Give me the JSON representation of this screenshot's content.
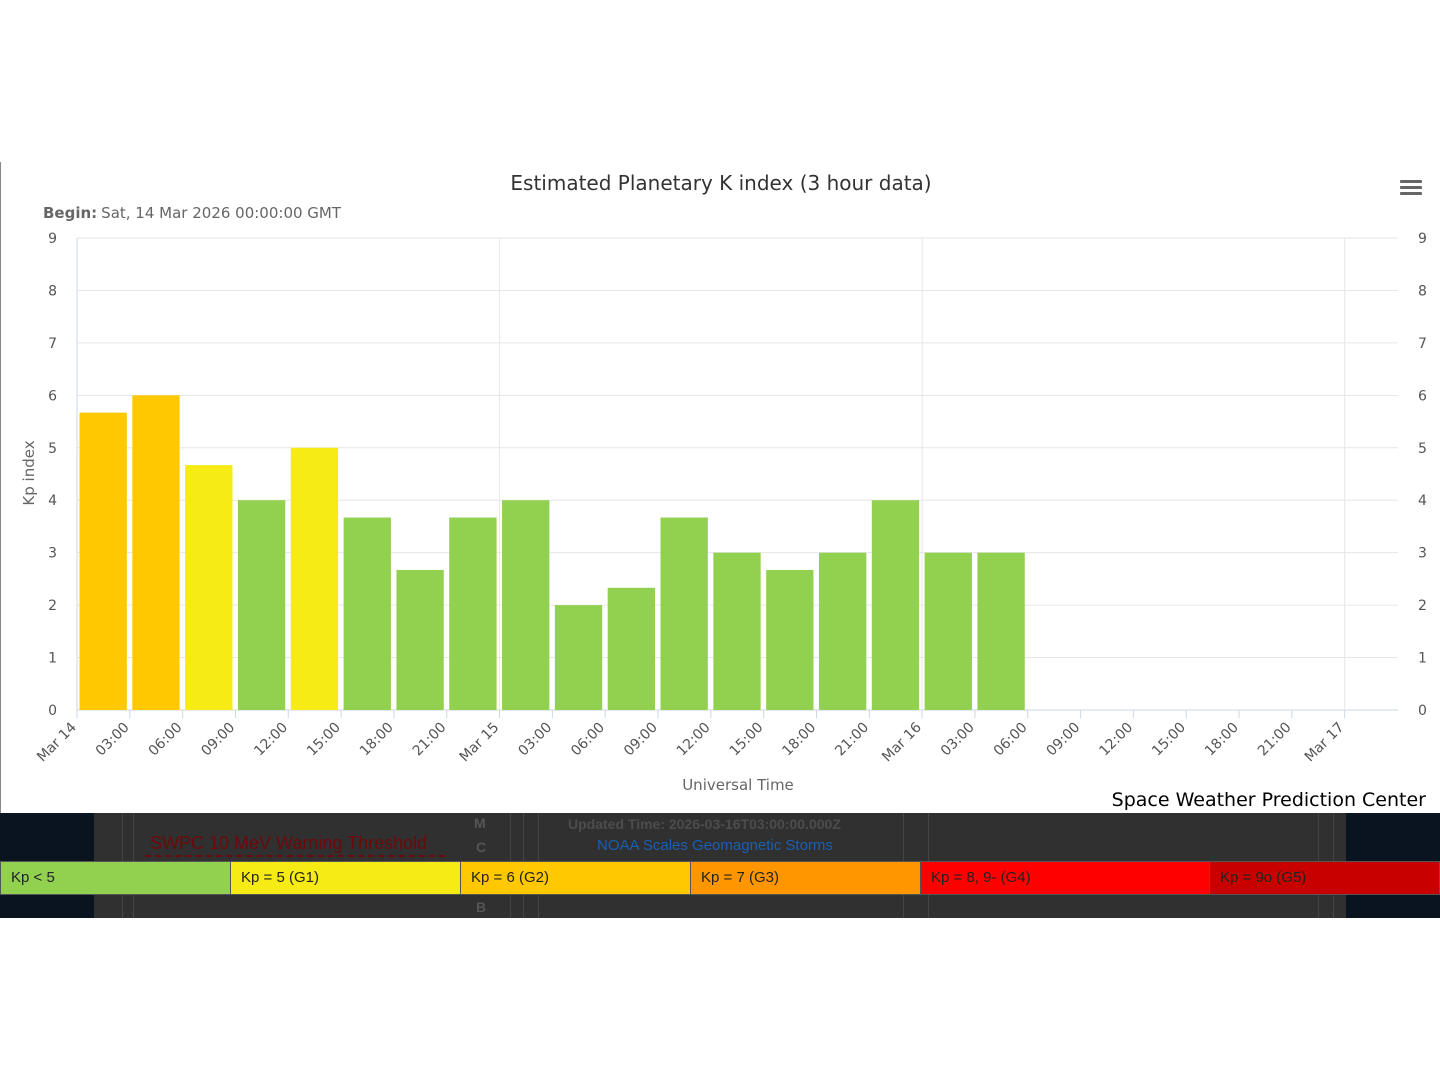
{
  "chart_data": {
    "type": "bar",
    "title": "Estimated Planetary K index (3 hour data)",
    "subtitle_label": "Begin:",
    "subtitle_value": "Sat, 14 Mar 2026 00:00:00 GMT",
    "xlabel": "Universal Time",
    "ylabel": "Kp index",
    "ylim": [
      0,
      9
    ],
    "yticks": [
      "0",
      "1",
      "2",
      "3",
      "4",
      "5",
      "6",
      "7",
      "8",
      "9"
    ],
    "xticks": [
      "Mar 14",
      "03:00",
      "06:00",
      "09:00",
      "12:00",
      "15:00",
      "18:00",
      "21:00",
      "Mar 15",
      "03:00",
      "06:00",
      "09:00",
      "12:00",
      "15:00",
      "18:00",
      "21:00",
      "Mar 16",
      "03:00",
      "06:00",
      "09:00",
      "12:00",
      "15:00",
      "18:00",
      "21:00",
      "Mar 17"
    ],
    "categories": [
      "Mar 14 00:00",
      "03:00",
      "06:00",
      "09:00",
      "12:00",
      "15:00",
      "18:00",
      "21:00",
      "Mar 15 00:00",
      "03:00",
      "06:00",
      "09:00",
      "12:00",
      "15:00",
      "18:00",
      "21:00",
      "Mar 16 00:00",
      "03:00"
    ],
    "values": [
      5.67,
      6,
      4.67,
      4,
      5,
      3.67,
      2.67,
      3.67,
      4,
      2,
      2.33,
      3.67,
      3,
      2.67,
      3,
      4,
      3,
      3
    ],
    "grid": true
  },
  "credit": "Space Weather Prediction Center",
  "colors": {
    "kp_lt5": "#92d050",
    "g1": "#f6eb14",
    "g2": "#ffc800",
    "g3": "#ff9600",
    "g4": "#ff0000",
    "g5": "#c80000"
  },
  "background": {
    "updated": "Updated Time: 2026-03-16T03:00:00.000Z",
    "threshold": "SWPC 10 MeV Warning Threshold",
    "letters": [
      "M",
      "C",
      "B"
    ]
  },
  "scales_link": "NOAA Scales Geomagnetic Storms",
  "legend": [
    {
      "label": "Kp < 5",
      "color": "#92d050"
    },
    {
      "label": "Kp = 5 (G1)",
      "color": "#f6eb14"
    },
    {
      "label": "Kp = 6 (G2)",
      "color": "#ffc800"
    },
    {
      "label": "Kp = 7 (G3)",
      "color": "#ff9600"
    },
    {
      "label": "Kp = 8, 9- (G4)",
      "color": "#ff0000"
    },
    {
      "label": "Kp = 9o (G5)",
      "color": "#c80000"
    }
  ]
}
